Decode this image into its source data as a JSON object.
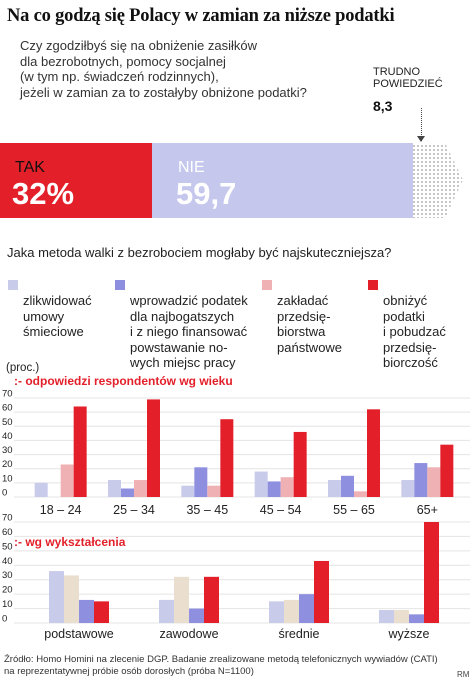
{
  "title": "Na co godzą się Polacy w zamian za niższe podatki",
  "question1": [
    "Czy zgodziłbyś się na obniżenie zasiłków",
    "dla bezrobotnych, pomocy socjalnej",
    "(w tym np. świadczeń rodzinnych),",
    "jeżeli w zamian za to zostałyby obniżone podatki?"
  ],
  "hard_to_say": {
    "label_line1": "TRUDNO",
    "label_line2": "POWIEDZIEĆ",
    "value": "8,3"
  },
  "tak": {
    "label": "TAK",
    "value": "32%",
    "share": 32
  },
  "nie": {
    "label": "NIE",
    "value": "59,7",
    "share": 59.7
  },
  "question2": "Jaka metoda walki z bezrobociem mogłaby być najskuteczniejsza?",
  "legend": [
    {
      "text": "zlikwidować\numowy\nśmieciowe",
      "color": "#c9cbea"
    },
    {
      "text": "wprowadzić podatek\ndla najbogatszych\ni z niego finansować\npowstawanie no-\nwych miejsc pracy",
      "color": "#8f8fe0"
    },
    {
      "text": "zakładać\nprzedsię-\nbiorstwa\npaństwowe",
      "color": "#f0b1b5"
    },
    {
      "text": "obniżyć\npodatki\ni pobudzać\nprzedsię-\nbiorczość",
      "color": "#e3202a"
    }
  ],
  "unit": "(proc.)",
  "colors": {
    "red": "#e3202a",
    "light_blue": "#c9cbea",
    "blue": "#8f8fe0",
    "pink": "#f0b1b5",
    "beige": "#eadfcf",
    "grid": "#e4e4e4"
  },
  "chart_data": [
    {
      "type": "bar",
      "title": "odpowiedzi respondentów wg wieku",
      "categories": [
        "18 – 24",
        "25 – 34",
        "35 – 45",
        "45 – 54",
        "55 – 65",
        "65+"
      ],
      "ylim": [
        0,
        70
      ],
      "yticks": [
        0,
        10,
        20,
        30,
        40,
        50,
        60,
        70
      ],
      "grid": true,
      "series": [
        {
          "name": "zlikwidować umowy śmieciowe",
          "values": [
            10,
            12,
            8,
            18,
            12,
            12
          ]
        },
        {
          "name": "wprowadzić podatek dla najbogatszych i z niego finansować powstawanie nowych miejsc pracy",
          "values": [
            0,
            6,
            21,
            11,
            15,
            24
          ]
        },
        {
          "name": "zakładać przedsiębiorstwa państwowe",
          "values": [
            23,
            12,
            8,
            14,
            4,
            21
          ]
        },
        {
          "name": "obniżyć podatki i pobudzać przedsiębiorczość",
          "values": [
            64,
            69,
            55,
            46,
            62,
            37
          ]
        }
      ]
    },
    {
      "type": "bar",
      "title": "wg wykształcenia",
      "categories": [
        "podstawowe",
        "zawodowe",
        "średnie",
        "wyższe"
      ],
      "ylim": [
        0,
        70
      ],
      "yticks": [
        0,
        10,
        20,
        30,
        40,
        50,
        60,
        70
      ],
      "grid": true,
      "series": [
        {
          "name": "zlikwidować umowy śmieciowe",
          "values": [
            36,
            16,
            15,
            9
          ]
        },
        {
          "name": "zakładać przedsiębiorstwa państwowe",
          "values": [
            33,
            32,
            16,
            9
          ]
        },
        {
          "name": "wprowadzić podatek dla najbogatszych i z niego finansować powstawanie nowych miejsc pracy",
          "values": [
            16,
            10,
            20,
            6
          ]
        },
        {
          "name": "obniżyć podatki i pobudzać przedsiębiorczość",
          "values": [
            15,
            32,
            43,
            70
          ]
        }
      ]
    }
  ],
  "footer": "Źródło: Homo Homini na zlecenie DGP. Badanie zrealizowane metodą telefonicznych wywiadów (CATI) na reprezentatywnej próbie osób dorosłych (próba N=1100)",
  "credit": "RM"
}
